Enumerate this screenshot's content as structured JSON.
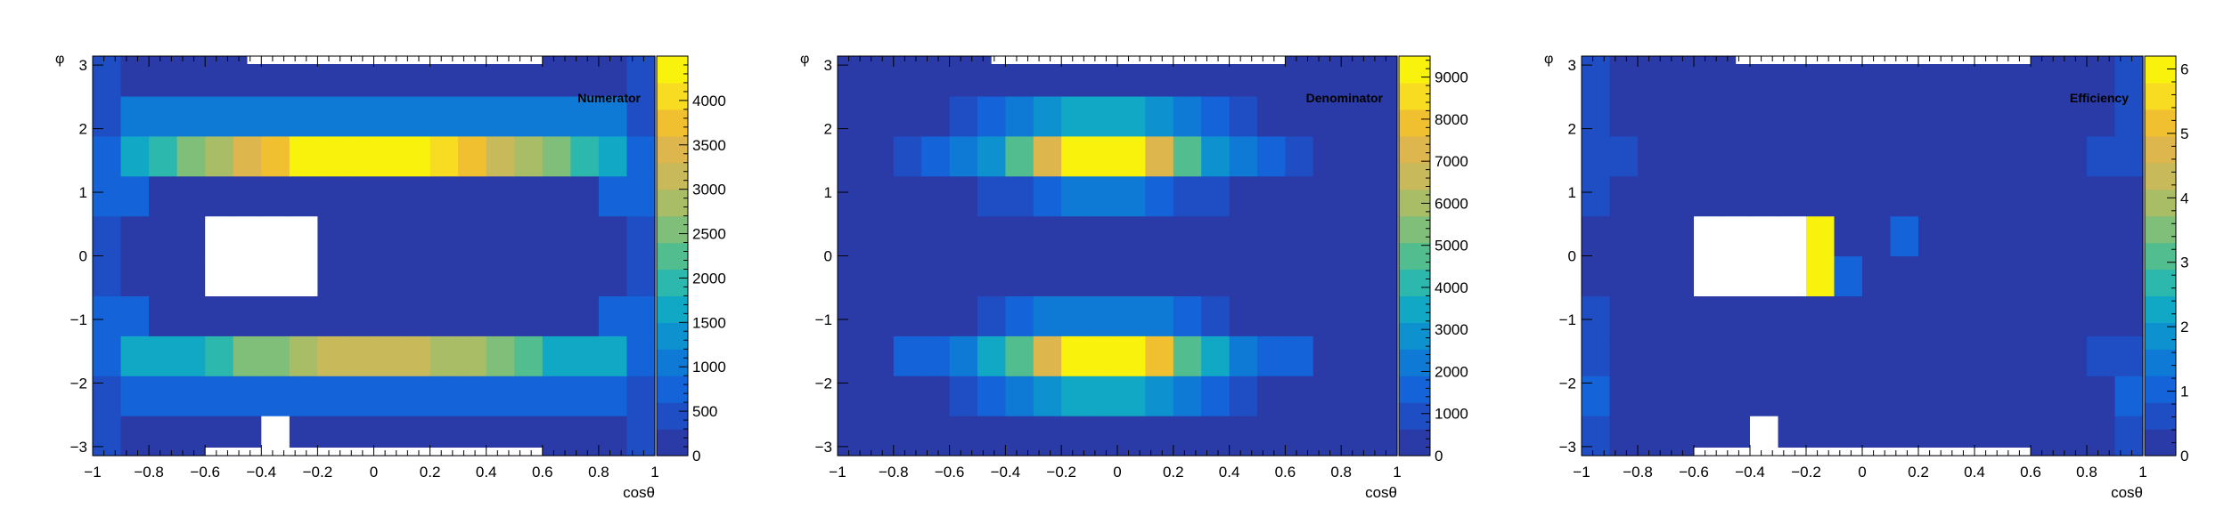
{
  "palette": {
    "colors": [
      "#2a3aa6",
      "#1f4ec4",
      "#1463d8",
      "#0f7ad6",
      "#0d91cf",
      "#11a8c6",
      "#2cb8ad",
      "#52bd8e",
      "#7fbf79",
      "#a9bd66",
      "#c8ba5b",
      "#ddb64d",
      "#f0c031",
      "#f8dc22",
      "#f9f20d"
    ],
    "white": "#ffffff"
  },
  "chart_data": [
    {
      "type": "heatmap",
      "title": "Numerator",
      "xlabel": "cosθ",
      "ylabel": "φ",
      "xlim": [
        -1,
        1
      ],
      "ylim": [
        -3.1416,
        3.1416
      ],
      "x_ticks": [
        "−1",
        "−0.8",
        "−0.6",
        "−0.4",
        "−0.2",
        "0",
        "0.2",
        "0.4",
        "0.6",
        "0.8",
        "1"
      ],
      "y_ticks": [
        "−3",
        "−2",
        "−1",
        "0",
        "1",
        "2",
        "3"
      ],
      "z_range": [
        0,
        4500
      ],
      "z_ticks": [
        "0",
        "500",
        "1000",
        "1500",
        "2000",
        "2500",
        "3000",
        "3500",
        "4000"
      ],
      "grid": false,
      "rows_bottom_to_top": [
        [
          300,
          50,
          50,
          50,
          50,
          50,
          null,
          50,
          50,
          50,
          50,
          50,
          50,
          50,
          50,
          50,
          50,
          50,
          50,
          300
        ],
        [
          500,
          650,
          650,
          650,
          650,
          650,
          650,
          650,
          650,
          650,
          650,
          650,
          650,
          650,
          650,
          650,
          650,
          650,
          750,
          500
        ],
        [
          650,
          1600,
          1600,
          1600,
          2000,
          2500,
          2600,
          2900,
          3200,
          3200,
          3200,
          3200,
          2800,
          2700,
          2500,
          2100,
          1600,
          1600,
          1600,
          650
        ],
        [
          600,
          750,
          50,
          50,
          50,
          50,
          50,
          50,
          50,
          50,
          50,
          50,
          50,
          50,
          50,
          50,
          50,
          50,
          750,
          600
        ],
        [
          300,
          50,
          50,
          50,
          null,
          null,
          null,
          null,
          50,
          50,
          50,
          50,
          50,
          50,
          50,
          50,
          50,
          50,
          50,
          300
        ],
        [
          300,
          50,
          50,
          50,
          null,
          null,
          null,
          null,
          50,
          50,
          50,
          50,
          50,
          50,
          50,
          50,
          50,
          50,
          50,
          300
        ],
        [
          600,
          750,
          50,
          50,
          50,
          50,
          50,
          50,
          50,
          50,
          50,
          50,
          50,
          50,
          50,
          50,
          50,
          50,
          750,
          600
        ],
        [
          650,
          1700,
          2000,
          2400,
          2800,
          3500,
          3700,
          4300,
          4400,
          4400,
          4400,
          4400,
          3900,
          3800,
          3200,
          2800,
          2400,
          2000,
          1700,
          650
        ],
        [
          500,
          1100,
          1100,
          1100,
          1100,
          1100,
          1100,
          1100,
          1100,
          1100,
          1100,
          1100,
          1100,
          1100,
          1100,
          1100,
          1100,
          1100,
          1100,
          500
        ],
        [
          300,
          50,
          50,
          50,
          50,
          50,
          50,
          50,
          50,
          50,
          50,
          50,
          50,
          50,
          50,
          50,
          50,
          50,
          50,
          300
        ]
      ],
      "empty_strips": {
        "top": [
          -0.45,
          0.6
        ],
        "bottom": [
          -0.6,
          0.6
        ]
      }
    },
    {
      "type": "heatmap",
      "title": "Denominator",
      "xlabel": "cosθ",
      "ylabel": "φ",
      "xlim": [
        -1,
        1
      ],
      "ylim": [
        -3.1416,
        3.1416
      ],
      "x_ticks": [
        "−1",
        "−0.8",
        "−0.6",
        "−0.4",
        "−0.2",
        "0",
        "0.2",
        "0.4",
        "0.6",
        "0.8",
        "1"
      ],
      "y_ticks": [
        "−3",
        "−2",
        "−1",
        "0",
        "1",
        "2",
        "3"
      ],
      "z_range": [
        0,
        9500
      ],
      "z_ticks": [
        "0",
        "1000",
        "2000",
        "3000",
        "4000",
        "5000",
        "6000",
        "7000",
        "8000",
        "9000"
      ],
      "grid": false,
      "rows_bottom_to_top": [
        [
          300,
          300,
          300,
          300,
          300,
          300,
          300,
          300,
          300,
          300,
          300,
          300,
          300,
          300,
          300,
          300,
          300,
          300,
          300,
          300
        ],
        [
          300,
          300,
          300,
          600,
          1100,
          1600,
          2200,
          3000,
          3600,
          3600,
          3600,
          3000,
          2200,
          1600,
          1100,
          600,
          300,
          300,
          300,
          300
        ],
        [
          300,
          300,
          1300,
          1600,
          2300,
          3200,
          4800,
          7500,
          9300,
          9300,
          9300,
          7600,
          4800,
          3200,
          2300,
          1600,
          1300,
          300,
          300,
          300
        ],
        [
          300,
          300,
          300,
          300,
          600,
          900,
          1300,
          1900,
          2300,
          2300,
          2300,
          1900,
          1300,
          900,
          600,
          300,
          300,
          300,
          300,
          300
        ],
        [
          300,
          300,
          300,
          300,
          300,
          300,
          300,
          300,
          300,
          300,
          300,
          300,
          300,
          300,
          300,
          300,
          300,
          300,
          300,
          300
        ],
        [
          300,
          300,
          300,
          300,
          300,
          300,
          300,
          300,
          300,
          300,
          300,
          300,
          300,
          300,
          300,
          300,
          300,
          300,
          300,
          300
        ],
        [
          300,
          300,
          300,
          300,
          500,
          700,
          1000,
          1500,
          1900,
          1900,
          1900,
          1500,
          1000,
          700,
          500,
          300,
          300,
          300,
          300,
          300
        ],
        [
          300,
          300,
          1200,
          1500,
          2200,
          3100,
          4600,
          7300,
          9300,
          9300,
          9300,
          7300,
          4600,
          3100,
          2200,
          1500,
          1200,
          300,
          300,
          300
        ],
        [
          300,
          300,
          300,
          600,
          1200,
          1700,
          2300,
          3000,
          3500,
          3500,
          3500,
          3000,
          2300,
          1700,
          1200,
          600,
          300,
          300,
          300,
          300
        ],
        [
          300,
          300,
          300,
          300,
          300,
          300,
          300,
          300,
          300,
          300,
          300,
          300,
          300,
          300,
          300,
          300,
          300,
          300,
          300,
          300
        ]
      ],
      "empty_strips": {
        "top": [
          -0.45,
          0.6
        ],
        "bottom": [
          -0.3,
          -0.3
        ]
      }
    },
    {
      "type": "heatmap",
      "title": "Efficiency",
      "xlabel": "cosθ",
      "ylabel": "φ",
      "xlim": [
        -1,
        1
      ],
      "ylim": [
        -3.1416,
        3.1416
      ],
      "x_ticks": [
        "−1",
        "−0.8",
        "−0.6",
        "−0.4",
        "−0.2",
        "0",
        "0.2",
        "0.4",
        "0.6",
        "0.8",
        "1"
      ],
      "y_ticks": [
        "−3",
        "−2",
        "−1",
        "0",
        "1",
        "2",
        "3"
      ],
      "z_range": [
        0,
        6.2
      ],
      "z_ticks": [
        "0",
        "1",
        "2",
        "3",
        "4",
        "5",
        "6"
      ],
      "grid": false,
      "rows_bottom_to_top": [
        [
          0.8,
          0.1,
          0.1,
          0.1,
          0.1,
          0.1,
          null,
          0.1,
          0.1,
          0.1,
          0.1,
          0.1,
          0.1,
          0.1,
          0.1,
          0.1,
          0.1,
          0.1,
          0.1,
          0.8
        ],
        [
          0.9,
          0.1,
          0.1,
          0.1,
          0.1,
          0.1,
          0.1,
          0.1,
          0.1,
          0.1,
          0.1,
          0.1,
          0.1,
          0.1,
          0.1,
          0.1,
          0.1,
          0.1,
          0.1,
          0.9
        ],
        [
          0.8,
          0.1,
          0.1,
          0.1,
          0.1,
          0.1,
          0.1,
          0.1,
          0.1,
          0.1,
          0.1,
          0.1,
          0.1,
          0.1,
          0.1,
          0.1,
          0.1,
          0.1,
          0.8,
          0.8
        ],
        [
          0.7,
          0.1,
          0.1,
          0.1,
          0.1,
          0.1,
          0.1,
          0.1,
          0.1,
          0.1,
          0.1,
          0.1,
          0.1,
          0.1,
          0.1,
          0.1,
          0.1,
          0.1,
          0.1,
          0.1
        ],
        [
          0.1,
          0.1,
          0.1,
          0.1,
          null,
          null,
          null,
          null,
          6.0,
          0.9,
          0.1,
          0.1,
          0.1,
          0.1,
          0.1,
          0.1,
          0.1,
          0.1,
          0.1,
          0.1
        ],
        [
          0.1,
          0.1,
          0.1,
          0.1,
          null,
          null,
          null,
          null,
          5.8,
          0.1,
          0.1,
          0.9,
          0.1,
          0.1,
          0.1,
          0.1,
          0.1,
          0.1,
          0.1,
          0.1
        ],
        [
          0.7,
          0.1,
          0.1,
          0.1,
          0.1,
          0.1,
          0.1,
          0.1,
          0.1,
          0.1,
          0.1,
          0.1,
          0.1,
          0.1,
          0.1,
          0.1,
          0.1,
          0.1,
          0.1,
          0.1
        ],
        [
          0.8,
          0.8,
          0.1,
          0.1,
          0.1,
          0.1,
          0.1,
          0.1,
          0.1,
          0.1,
          0.1,
          0.1,
          0.1,
          0.1,
          0.1,
          0.1,
          0.1,
          0.1,
          0.8,
          0.8
        ],
        [
          0.7,
          0.1,
          0.1,
          0.1,
          0.1,
          0.1,
          0.1,
          0.1,
          0.1,
          0.1,
          0.1,
          0.1,
          0.1,
          0.1,
          0.1,
          0.1,
          0.1,
          0.1,
          0.1,
          0.7
        ],
        [
          0.6,
          0.1,
          0.1,
          0.1,
          0.1,
          0.1,
          0.1,
          0.1,
          0.1,
          0.1,
          0.1,
          0.1,
          0.1,
          0.1,
          0.1,
          0.1,
          0.1,
          0.1,
          0.1,
          0.6
        ]
      ],
      "empty_strips": {
        "top": [
          -0.45,
          0.6
        ],
        "bottom": [
          -0.6,
          0.6
        ]
      }
    }
  ]
}
